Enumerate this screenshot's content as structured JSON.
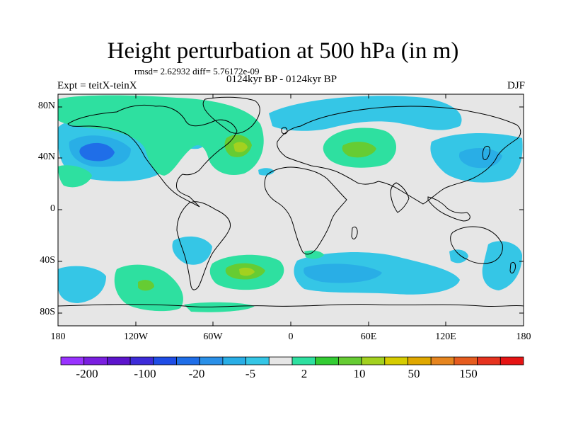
{
  "title": "Height perturbation at 500 hPa (in m)",
  "subtitle_stats": "rmsd= 2.62932 diff= 5.76172e-09",
  "subtitle_period": "0124kyr BP - 0124kyr BP",
  "left_label": "Expt = teitX-teinX",
  "right_label": "DJF",
  "lat_labels": [
    "80N",
    "40N",
    "0",
    "40S",
    "80S"
  ],
  "lon_labels": [
    "180",
    "120W",
    "60W",
    "0",
    "60E",
    "120E",
    "180"
  ],
  "colorbar": {
    "colors": [
      "#9933ff",
      "#7a1fe0",
      "#5c14cc",
      "#3d2bd9",
      "#1f4de6",
      "#1f6ee8",
      "#2a90e8",
      "#29aee6",
      "#35c6e6",
      "#e6e6e6",
      "#2ee0a0",
      "#33cc33",
      "#66cc33",
      "#a3d11f",
      "#d6cc00",
      "#e0a800",
      "#e6851f",
      "#e65c1f",
      "#e6331f",
      "#e61414"
    ],
    "labels": [
      "-200",
      "-100",
      "-20",
      "-5",
      "2",
      "10",
      "50",
      "150"
    ]
  },
  "field_colors": {
    "background": "#e6e6e6",
    "neg_light": "#35c6e6",
    "neg_mid": "#29aee6",
    "neg_strong": "#2a90e8",
    "neg_core": "#1f6ee8",
    "pos_light": "#2ee0a0",
    "pos_mid": "#66cc33",
    "pos_core": "#a3d11f"
  }
}
